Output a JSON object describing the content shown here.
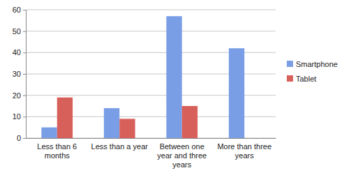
{
  "chart_data": {
    "type": "bar",
    "categories": [
      "Less than 6 months",
      "Less than a year",
      "Between one year and three years",
      "More than three years"
    ],
    "series": [
      {
        "name": "Smartphone",
        "color": "#7a9ee6",
        "values": [
          5,
          14,
          57,
          42
        ]
      },
      {
        "name": "Tablet",
        "color": "#d8605b",
        "values": [
          19,
          9,
          15,
          0
        ]
      }
    ],
    "ylim": [
      0,
      60
    ],
    "yticks": [
      0,
      10,
      20,
      30,
      40,
      50,
      60
    ],
    "grid": true,
    "legend": "right"
  }
}
